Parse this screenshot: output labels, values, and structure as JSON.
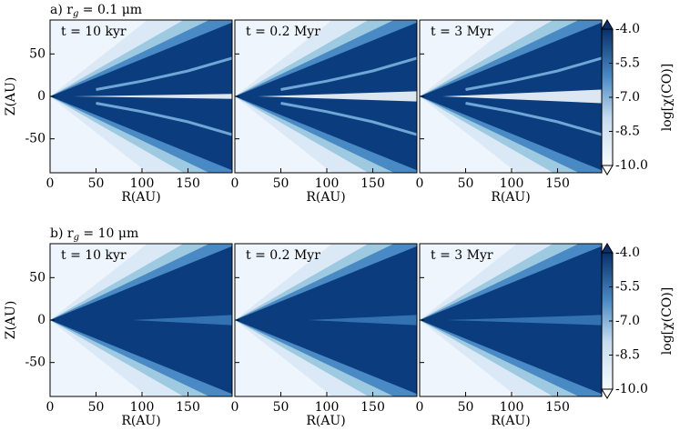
{
  "chart_data": [
    {
      "type": "heatmap",
      "title_parts": [
        "a) r",
        "g",
        " = 0.1 μm"
      ],
      "panels": [
        "t = 10 kyr",
        "t = 0.2 Myr",
        "t = 3 Myr"
      ],
      "xlabel": "R(AU)",
      "ylabel": "Z(AU)",
      "xlim": [
        0,
        198
      ],
      "ylim": [
        -90,
        90
      ],
      "xticks": [
        0,
        50,
        100,
        150
      ],
      "yticks": [
        -50,
        0,
        50
      ],
      "colorbar": {
        "label": "log[χ(CO)]",
        "lim": [
          -10,
          -4
        ],
        "ticks": [
          {
            "value": -4,
            "label": "-4.0"
          },
          -5.5,
          {
            "value": -7,
            "label": "-7.0"
          },
          -8.5,
          {
            "value": -10,
            "label": "-10.0"
          }
        ]
      }
    },
    {
      "type": "heatmap",
      "title_parts": [
        "b) r",
        "g",
        " = 10 μm"
      ],
      "panels": [
        "t = 10 kyr",
        "t = 0.2 Myr",
        "t = 3 Myr"
      ],
      "xlabel": "R(AU)",
      "ylabel": "Z(AU)",
      "xlim": [
        0,
        198
      ],
      "ylim": [
        -90,
        90
      ],
      "xticks": [
        0,
        50,
        100,
        150
      ],
      "yticks": [
        -50,
        0,
        50
      ],
      "colorbar": {
        "label": "log[χ(CO)]",
        "lim": [
          -10,
          -4
        ],
        "ticks": [
          {
            "value": -4,
            "label": "-4.0"
          },
          -5.5,
          {
            "value": -7,
            "label": "-7.0"
          },
          -8.5,
          {
            "value": -10,
            "label": "-10.0"
          }
        ]
      }
    }
  ]
}
